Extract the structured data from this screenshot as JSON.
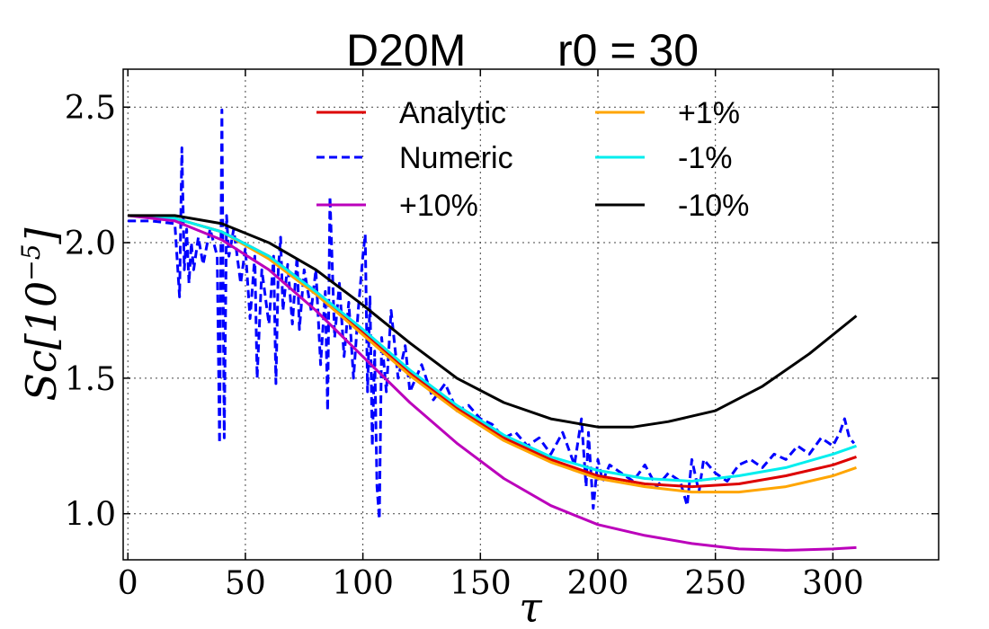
{
  "chart_data": {
    "type": "line",
    "title_left": "D20M",
    "title_right": "r0 = 30",
    "xlabel": "τ",
    "ylabel_main": "Sc[10",
    "ylabel_exp": "−5",
    "ylabel_close": "]",
    "xlim": [
      -2,
      345
    ],
    "ylim": [
      0.83,
      2.64
    ],
    "xticks": [
      0,
      50,
      100,
      150,
      200,
      250,
      300
    ],
    "xtick_labels": [
      "0",
      "50",
      "100",
      "150",
      "200",
      "250",
      "300"
    ],
    "yticks": [
      1.0,
      1.5,
      2.0,
      2.5
    ],
    "ytick_labels": [
      "1.0",
      "1.5",
      "2.0",
      "2.5"
    ],
    "grid": true,
    "legend": {
      "placement": "top",
      "columns": 2,
      "entries": [
        {
          "label": "Analytic",
          "color": "#dd0000",
          "dash": "solid"
        },
        {
          "label": "+1%",
          "color": "#ffa500",
          "dash": "solid"
        },
        {
          "label": "Numeric",
          "color": "#0000ff",
          "dash": "dashed"
        },
        {
          "label": "-1%",
          "color": "#00eeee",
          "dash": "solid"
        },
        {
          "label": "+10%",
          "color": "#bb00bb",
          "dash": "solid"
        },
        {
          "label": "-10%",
          "color": "#000000",
          "dash": "solid"
        }
      ]
    },
    "series": [
      {
        "name": "Numeric",
        "color": "#0000ff",
        "dash": "dashed",
        "x": [
          0,
          10,
          20,
          22,
          23,
          24,
          25,
          26,
          27,
          28,
          30,
          32,
          35,
          38,
          39,
          40,
          41,
          42,
          43,
          45,
          48,
          50,
          52,
          54,
          55,
          57,
          60,
          62,
          63,
          64,
          65,
          66,
          68,
          70,
          72,
          73,
          75,
          78,
          80,
          82,
          84,
          85,
          86,
          88,
          90,
          92,
          94,
          96,
          98,
          100,
          101,
          102,
          103,
          104,
          105,
          106,
          107,
          108,
          110,
          112,
          115,
          118,
          120,
          125,
          130,
          135,
          140,
          145,
          150,
          155,
          160,
          165,
          170,
          175,
          180,
          185,
          190,
          193,
          195,
          196,
          198,
          200,
          202,
          205,
          210,
          215,
          220,
          225,
          230,
          235,
          238,
          240,
          243,
          245,
          250,
          255,
          260,
          265,
          270,
          275,
          280,
          285,
          290,
          295,
          300,
          303,
          305,
          307,
          309
        ],
        "y": [
          2.08,
          2.08,
          2.07,
          1.8,
          2.35,
          1.9,
          2.05,
          1.85,
          2.0,
          1.9,
          2.02,
          1.92,
          2.05,
          1.95,
          1.26,
          2.49,
          1.28,
          2.1,
          1.95,
          2.05,
          1.85,
          1.98,
          1.72,
          1.95,
          1.5,
          1.9,
          1.7,
          1.95,
          1.48,
          1.9,
          2.02,
          1.75,
          1.92,
          1.7,
          1.95,
          1.68,
          1.9,
          1.75,
          1.9,
          1.55,
          1.82,
          1.38,
          2.17,
          1.65,
          1.85,
          1.58,
          1.78,
          1.5,
          1.75,
          1.95,
          2.03,
          1.45,
          1.8,
          1.25,
          1.6,
          1.1,
          0.98,
          1.65,
          1.45,
          1.75,
          1.5,
          1.62,
          1.45,
          1.55,
          1.42,
          1.48,
          1.38,
          1.4,
          1.35,
          1.33,
          1.28,
          1.3,
          1.25,
          1.28,
          1.22,
          1.3,
          1.18,
          1.35,
          1.1,
          1.3,
          1.02,
          1.2,
          1.12,
          1.18,
          1.15,
          1.12,
          1.18,
          1.1,
          1.15,
          1.12,
          1.03,
          1.2,
          1.08,
          1.2,
          1.15,
          1.12,
          1.18,
          1.2,
          1.17,
          1.22,
          1.2,
          1.25,
          1.22,
          1.28,
          1.25,
          1.3,
          1.35,
          1.28,
          1.26
        ]
      },
      {
        "name": "Analytic",
        "color": "#dd0000",
        "dash": "solid",
        "x": [
          0,
          20,
          40,
          60,
          80,
          100,
          120,
          140,
          160,
          180,
          200,
          220,
          240,
          260,
          280,
          300,
          310
        ],
        "y": [
          2.1,
          2.09,
          2.04,
          1.95,
          1.82,
          1.67,
          1.52,
          1.39,
          1.28,
          1.2,
          1.14,
          1.11,
          1.1,
          1.11,
          1.14,
          1.18,
          1.21
        ]
      },
      {
        "name": "+1%",
        "color": "#ffa500",
        "dash": "solid",
        "x": [
          0,
          20,
          40,
          60,
          80,
          100,
          120,
          140,
          160,
          180,
          200,
          220,
          240,
          260,
          280,
          300,
          310
        ],
        "y": [
          2.1,
          2.09,
          2.04,
          1.94,
          1.81,
          1.66,
          1.51,
          1.38,
          1.27,
          1.19,
          1.13,
          1.1,
          1.08,
          1.08,
          1.1,
          1.14,
          1.17
        ]
      },
      {
        "name": "-1%",
        "color": "#00eeee",
        "dash": "solid",
        "x": [
          0,
          20,
          40,
          60,
          80,
          100,
          120,
          140,
          160,
          180,
          200,
          220,
          240,
          260,
          280,
          300,
          310
        ],
        "y": [
          2.1,
          2.09,
          2.04,
          1.95,
          1.82,
          1.68,
          1.53,
          1.4,
          1.29,
          1.21,
          1.16,
          1.13,
          1.12,
          1.14,
          1.17,
          1.22,
          1.25
        ]
      },
      {
        "name": "+10%",
        "color": "#bb00bb",
        "dash": "solid",
        "x": [
          0,
          20,
          40,
          60,
          80,
          100,
          120,
          140,
          160,
          180,
          200,
          220,
          240,
          260,
          280,
          300,
          310
        ],
        "y": [
          2.1,
          2.08,
          2.01,
          1.9,
          1.75,
          1.58,
          1.41,
          1.26,
          1.13,
          1.03,
          0.96,
          0.92,
          0.89,
          0.87,
          0.865,
          0.87,
          0.875
        ]
      },
      {
        "name": "-10%",
        "color": "#000000",
        "dash": "solid",
        "x": [
          0,
          20,
          40,
          60,
          80,
          100,
          120,
          140,
          160,
          180,
          200,
          215,
          230,
          250,
          270,
          290,
          310
        ],
        "y": [
          2.1,
          2.1,
          2.07,
          2.0,
          1.9,
          1.77,
          1.63,
          1.5,
          1.41,
          1.35,
          1.32,
          1.32,
          1.34,
          1.38,
          1.47,
          1.59,
          1.73
        ]
      }
    ]
  }
}
